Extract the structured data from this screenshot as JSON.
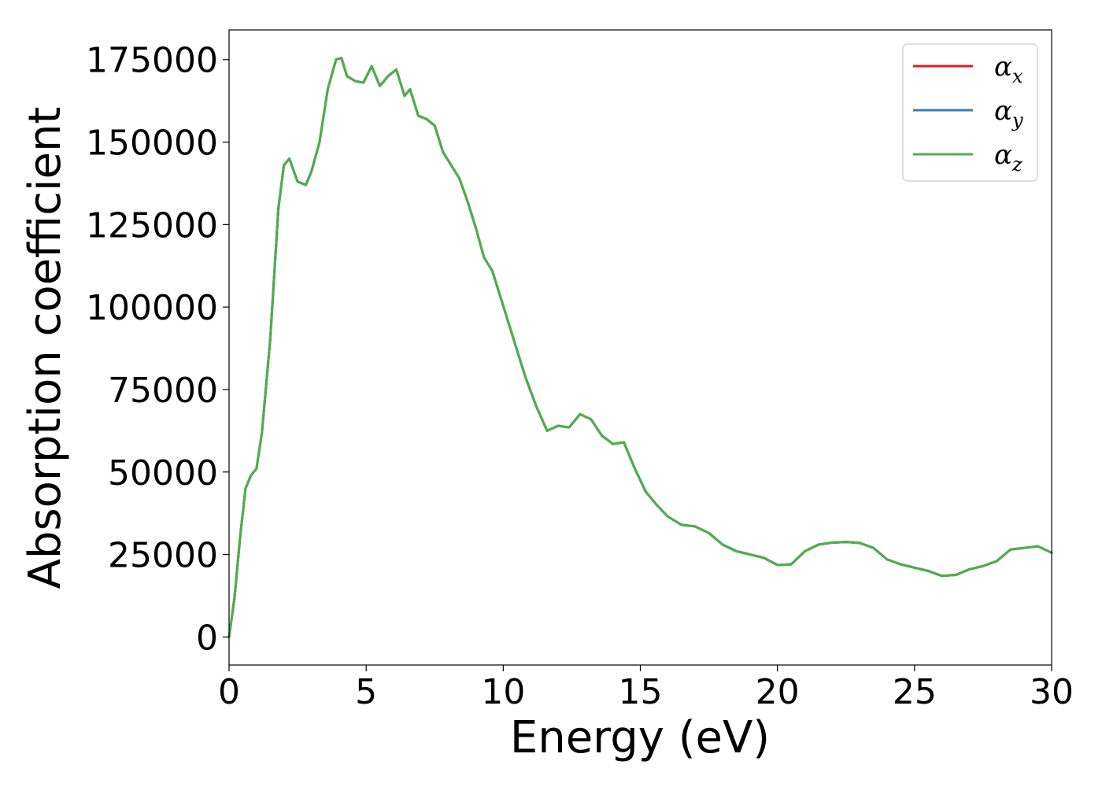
{
  "chart_data": {
    "type": "line",
    "xlabel": "Energy (eV)",
    "ylabel": "Absorption coefficient",
    "xlim": [
      0,
      30
    ],
    "ylim": [
      -8500,
      184000
    ],
    "x_ticks": [
      "0",
      "5",
      "10",
      "15",
      "20",
      "25",
      "30"
    ],
    "y_ticks": [
      "0",
      "25000",
      "50000",
      "75000",
      "100000",
      "125000",
      "150000",
      "175000"
    ],
    "grid": false,
    "legend_position": "top-right",
    "series": [
      {
        "name": "α_x",
        "symbol": "α",
        "subscript": "x",
        "color": "#e41a1c",
        "x": [
          0,
          0.2,
          0.4,
          0.6,
          0.8,
          1.0,
          1.2,
          1.5,
          1.8,
          2.0,
          2.2,
          2.5,
          2.8,
          3.0,
          3.3,
          3.6,
          3.9,
          4.1,
          4.3,
          4.6,
          4.9,
          5.2,
          5.5,
          5.8,
          6.1,
          6.4,
          6.6,
          6.9,
          7.2,
          7.5,
          7.8,
          8.1,
          8.4,
          8.7,
          9.0,
          9.3,
          9.6,
          9.9,
          10.2,
          10.5,
          10.8,
          11.2,
          11.6,
          12.0,
          12.4,
          12.8,
          13.2,
          13.6,
          14.0,
          14.4,
          14.8,
          15.2,
          15.6,
          16.0,
          16.5,
          17.0,
          17.5,
          18.0,
          18.5,
          19.0,
          19.5,
          20.0,
          20.5,
          21.0,
          21.5,
          22.0,
          22.5,
          23.0,
          23.5,
          24.0,
          24.5,
          25.0,
          25.5,
          26.0,
          26.5,
          27.0,
          27.5,
          28.0,
          28.5,
          29.0,
          29.5,
          30.0
        ],
        "values": [
          0,
          12000,
          30000,
          45000,
          49000,
          51000,
          62000,
          90000,
          130000,
          143000,
          145000,
          138000,
          137000,
          141000,
          150000,
          166000,
          175000,
          175500,
          170000,
          168500,
          168000,
          173000,
          167000,
          170000,
          172000,
          164000,
          166000,
          158000,
          157000,
          155000,
          147000,
          143000,
          139000,
          132000,
          124000,
          115000,
          111000,
          103000,
          95000,
          87000,
          79000,
          70000,
          62500,
          64000,
          63500,
          67500,
          66000,
          61000,
          58500,
          59000,
          51000,
          44000,
          40000,
          36500,
          34000,
          33500,
          31500,
          28000,
          26000,
          25000,
          24000,
          21800,
          22000,
          26000,
          28000,
          28600,
          28800,
          28500,
          27000,
          23500,
          22000,
          21000,
          20000,
          18500,
          18800,
          20500,
          21500,
          23000,
          26500,
          27000,
          27500,
          25500
        ]
      },
      {
        "name": "α_y",
        "symbol": "α",
        "subscript": "y",
        "color": "#377eb8",
        "x": [
          0,
          0.2,
          0.4,
          0.6,
          0.8,
          1.0,
          1.2,
          1.5,
          1.8,
          2.0,
          2.2,
          2.5,
          2.8,
          3.0,
          3.3,
          3.6,
          3.9,
          4.1,
          4.3,
          4.6,
          4.9,
          5.2,
          5.5,
          5.8,
          6.1,
          6.4,
          6.6,
          6.9,
          7.2,
          7.5,
          7.8,
          8.1,
          8.4,
          8.7,
          9.0,
          9.3,
          9.6,
          9.9,
          10.2,
          10.5,
          10.8,
          11.2,
          11.6,
          12.0,
          12.4,
          12.8,
          13.2,
          13.6,
          14.0,
          14.4,
          14.8,
          15.2,
          15.6,
          16.0,
          16.5,
          17.0,
          17.5,
          18.0,
          18.5,
          19.0,
          19.5,
          20.0,
          20.5,
          21.0,
          21.5,
          22.0,
          22.5,
          23.0,
          23.5,
          24.0,
          24.5,
          25.0,
          25.5,
          26.0,
          26.5,
          27.0,
          27.5,
          28.0,
          28.5,
          29.0,
          29.5,
          30.0
        ],
        "values": [
          0,
          12000,
          30000,
          45000,
          49000,
          51000,
          62000,
          90000,
          130000,
          143000,
          145000,
          138000,
          137000,
          141000,
          150000,
          166000,
          175000,
          175500,
          170000,
          168500,
          168000,
          173000,
          167000,
          170000,
          172000,
          164000,
          166000,
          158000,
          157000,
          155000,
          147000,
          143000,
          139000,
          132000,
          124000,
          115000,
          111000,
          103000,
          95000,
          87000,
          79000,
          70000,
          62500,
          64000,
          63500,
          67500,
          66000,
          61000,
          58500,
          59000,
          51000,
          44000,
          40000,
          36500,
          34000,
          33500,
          31500,
          28000,
          26000,
          25000,
          24000,
          21800,
          22000,
          26000,
          28000,
          28600,
          28800,
          28500,
          27000,
          23500,
          22000,
          21000,
          20000,
          18500,
          18800,
          20500,
          21500,
          23000,
          26500,
          27000,
          27500,
          25500
        ]
      },
      {
        "name": "α_z",
        "symbol": "α",
        "subscript": "z",
        "color": "#4daf4a",
        "x": [
          0,
          0.2,
          0.4,
          0.6,
          0.8,
          1.0,
          1.2,
          1.5,
          1.8,
          2.0,
          2.2,
          2.5,
          2.8,
          3.0,
          3.3,
          3.6,
          3.9,
          4.1,
          4.3,
          4.6,
          4.9,
          5.2,
          5.5,
          5.8,
          6.1,
          6.4,
          6.6,
          6.9,
          7.2,
          7.5,
          7.8,
          8.1,
          8.4,
          8.7,
          9.0,
          9.3,
          9.6,
          9.9,
          10.2,
          10.5,
          10.8,
          11.2,
          11.6,
          12.0,
          12.4,
          12.8,
          13.2,
          13.6,
          14.0,
          14.4,
          14.8,
          15.2,
          15.6,
          16.0,
          16.5,
          17.0,
          17.5,
          18.0,
          18.5,
          19.0,
          19.5,
          20.0,
          20.5,
          21.0,
          21.5,
          22.0,
          22.5,
          23.0,
          23.5,
          24.0,
          24.5,
          25.0,
          25.5,
          26.0,
          26.5,
          27.0,
          27.5,
          28.0,
          28.5,
          29.0,
          29.5,
          30.0
        ],
        "values": [
          0,
          12000,
          30000,
          45000,
          49000,
          51000,
          62000,
          90000,
          130000,
          143000,
          145000,
          138000,
          137000,
          141000,
          150000,
          166000,
          175000,
          175500,
          170000,
          168500,
          168000,
          173000,
          167000,
          170000,
          172000,
          164000,
          166000,
          158000,
          157000,
          155000,
          147000,
          143000,
          139000,
          132000,
          124000,
          115000,
          111000,
          103000,
          95000,
          87000,
          79000,
          70000,
          62500,
          64000,
          63500,
          67500,
          66000,
          61000,
          58500,
          59000,
          51000,
          44000,
          40000,
          36500,
          34000,
          33500,
          31500,
          28000,
          26000,
          25000,
          24000,
          21800,
          22000,
          26000,
          28000,
          28600,
          28800,
          28500,
          27000,
          23500,
          22000,
          21000,
          20000,
          18500,
          18800,
          20500,
          21500,
          23000,
          26500,
          27000,
          27500,
          25500
        ]
      }
    ]
  }
}
